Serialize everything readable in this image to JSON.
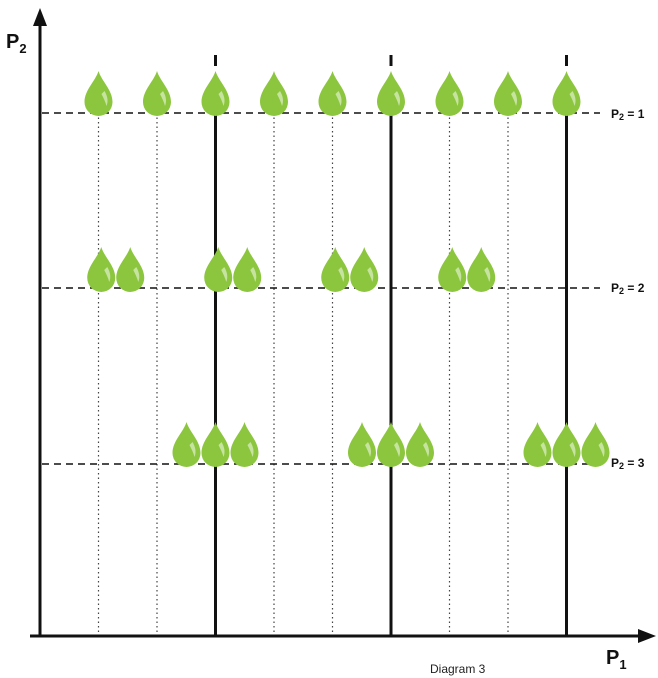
{
  "x_axis": {
    "letter": "P",
    "subscript": "1"
  },
  "y_axis": {
    "letter": "P",
    "subscript": "2"
  },
  "levels": [
    {
      "prefix": "P",
      "subscript": "2",
      "suffix": " = 1"
    },
    {
      "prefix": "P",
      "subscript": "2",
      "suffix": " = 2"
    },
    {
      "prefix": "P",
      "subscript": "2",
      "suffix": " = 3"
    }
  ],
  "caption": "Diagram 3",
  "colors": {
    "drop_fill": "#8cc63f",
    "drop_highlight": "#c6e3a0",
    "line": "#111111",
    "dotted": "#444444"
  },
  "drops": {
    "level_1_count": 9,
    "level_2_groups": 4,
    "level_2_per_group": 2,
    "level_3_groups": 3,
    "level_3_per_group": 3
  }
}
